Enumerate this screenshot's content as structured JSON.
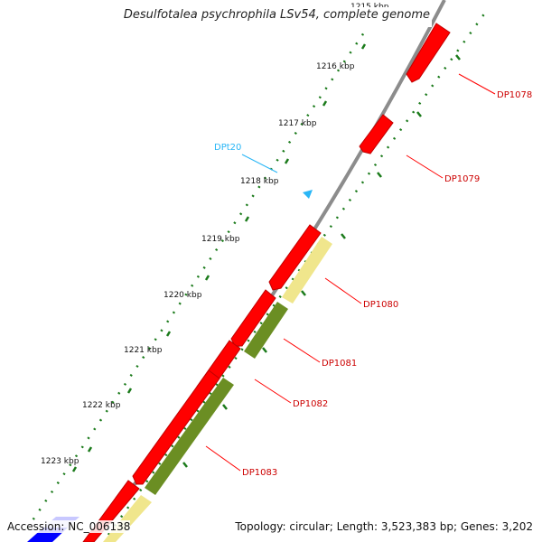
{
  "title": "Desulfotalea psychrophila LSv54, complete genome",
  "accession": "Accession: NC_006138",
  "topology": "Topology: circular; Length: 3,523,383 bp; Genes: 3,202",
  "colors": {
    "backbone": "#8c8c8c",
    "gene": "#ff0000",
    "gene_edge": "#b30000",
    "trna": "#29b6f6",
    "label": "#cc0000",
    "tick": "#1a7a1a",
    "olive": "#6b8e23",
    "khaki": "#f0e68c",
    "blue": "#0000ff"
  },
  "scale_labels": [
    "1215 kbp",
    "1216 kbp",
    "1217 kbp",
    "1218 kbp",
    "1219 kbp",
    "1220 kbp",
    "1221 kbp",
    "1222 kbp",
    "1223 kbp"
  ],
  "genes": [
    {
      "name": "DP1078",
      "color_key": "label"
    },
    {
      "name": "DP1079",
      "color_key": "label"
    },
    {
      "name": "DP1080",
      "color_key": "label"
    },
    {
      "name": "DP1081",
      "color_key": "label"
    },
    {
      "name": "DP1082",
      "color_key": "label"
    },
    {
      "name": "DP1083",
      "color_key": "label"
    }
  ],
  "trna": {
    "name": "DPt20"
  }
}
